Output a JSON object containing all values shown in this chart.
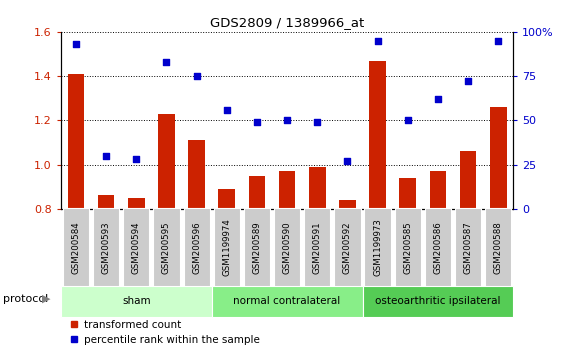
{
  "title": "GDS2809 / 1389966_at",
  "categories": [
    "GSM200584",
    "GSM200593",
    "GSM200594",
    "GSM200595",
    "GSM200596",
    "GSM1199974",
    "GSM200589",
    "GSM200590",
    "GSM200591",
    "GSM200592",
    "GSM1199973",
    "GSM200585",
    "GSM200586",
    "GSM200587",
    "GSM200588"
  ],
  "bar_values": [
    1.41,
    0.86,
    0.85,
    1.23,
    1.11,
    0.89,
    0.95,
    0.97,
    0.99,
    0.84,
    1.47,
    0.94,
    0.97,
    1.06,
    1.26
  ],
  "scatter_values": [
    93,
    30,
    28,
    83,
    75,
    56,
    49,
    50,
    49,
    27,
    95,
    50,
    62,
    72,
    95
  ],
  "bar_color": "#cc2200",
  "scatter_color": "#0000cc",
  "ylim_left": [
    0.8,
    1.6
  ],
  "ylim_right": [
    0,
    100
  ],
  "yticks_left": [
    0.8,
    1.0,
    1.2,
    1.4,
    1.6
  ],
  "yticks_right": [
    0,
    25,
    50,
    75,
    100
  ],
  "ytick_labels_right": [
    "0",
    "25",
    "50",
    "75",
    "100%"
  ],
  "groups": [
    {
      "label": "sham",
      "start": 0,
      "end": 5,
      "color": "#ccffcc"
    },
    {
      "label": "normal contralateral",
      "start": 5,
      "end": 10,
      "color": "#88ee88"
    },
    {
      "label": "osteoarthritic ipsilateral",
      "start": 10,
      "end": 15,
      "color": "#55cc55"
    }
  ],
  "protocol_label": "protocol",
  "legend_bar_label": "transformed count",
  "legend_scatter_label": "percentile rank within the sample",
  "tick_label_bg": "#cccccc",
  "background_color": "#ffffff"
}
